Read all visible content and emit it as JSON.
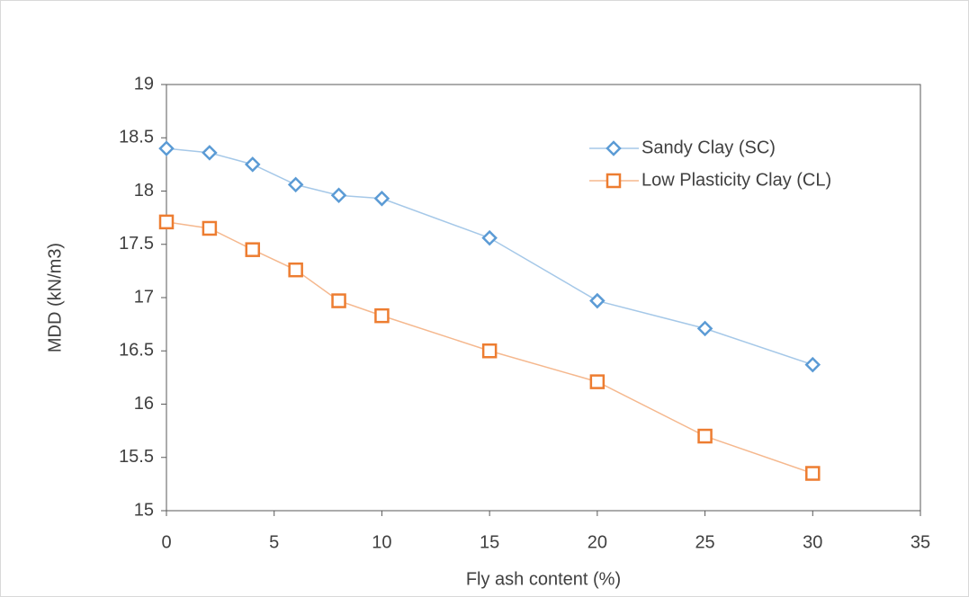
{
  "chart_data": {
    "type": "line",
    "x_label": "Fly ash content (%)",
    "y_label": "MDD (kN/m3)",
    "x": [
      0,
      2,
      4,
      6,
      8,
      10,
      15,
      20,
      25,
      30
    ],
    "series": [
      {
        "name": "Sandy Clay (SC)",
        "color": "#5b9bd5",
        "marker": "diamond",
        "values": [
          18.4,
          18.36,
          18.25,
          18.06,
          17.96,
          17.93,
          17.56,
          16.97,
          16.71,
          16.37
        ]
      },
      {
        "name": "Low Plasticity Clay (CL)",
        "color": "#ed7d31",
        "marker": "square",
        "values": [
          17.71,
          17.65,
          17.45,
          17.26,
          16.97,
          16.83,
          16.5,
          16.21,
          15.7,
          15.35
        ]
      }
    ],
    "xlim": [
      0,
      35
    ],
    "xticks": [
      0,
      5,
      10,
      15,
      20,
      25,
      30,
      35
    ],
    "ylim": [
      15,
      19
    ],
    "yticks": [
      15,
      15.5,
      16,
      16.5,
      17,
      17.5,
      18,
      18.5,
      19
    ],
    "grid": false,
    "legend": "upper-right"
  }
}
